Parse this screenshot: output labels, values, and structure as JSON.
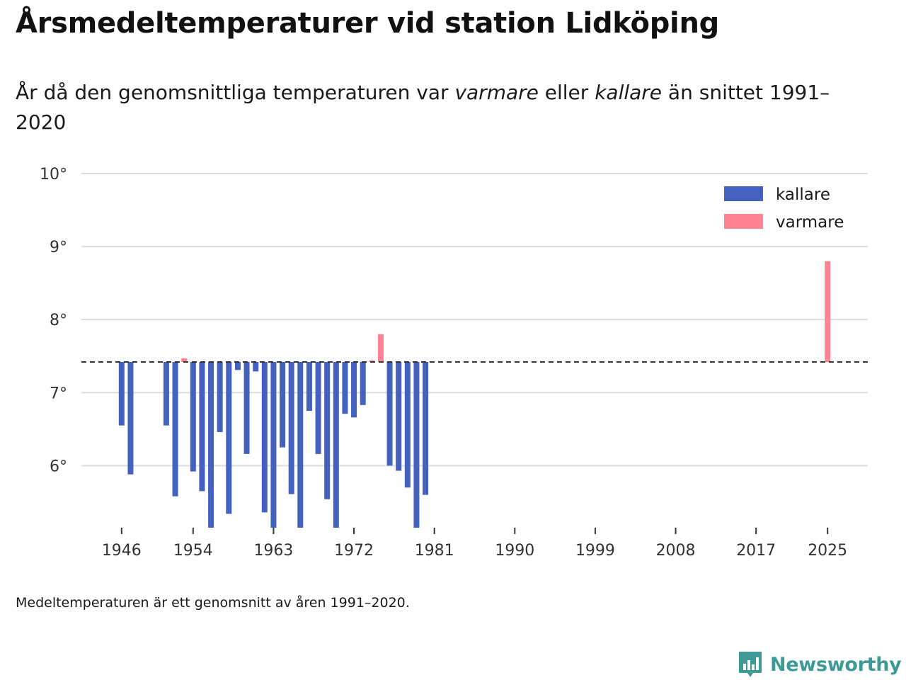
{
  "title": "Årsmedeltemperaturer vid station Lidköping",
  "subtitle": {
    "part1": "År då den genomsnittliga temperaturen var ",
    "warmer_word": "varmare",
    "part2": " eller ",
    "colder_word": "kallare",
    "part3": " än snittet 1991–2020"
  },
  "note": "Medeltemperaturen är ett genomsnitt av åren 1991–2020.",
  "brand": "Newsworthy",
  "colors": {
    "colder": "#4361bd",
    "warmer": "#ff8393",
    "grid": "#dddddd",
    "baseline": "#333333",
    "brand": "#3d9a94"
  },
  "chart_data": {
    "type": "bar",
    "baseline": 7.42,
    "ylim": [
      5.15,
      10
    ],
    "xlim": [
      1941.5,
      2029.5
    ],
    "y_ticks": [
      6,
      7,
      8,
      9,
      10
    ],
    "y_tick_labels": [
      "6°",
      "7°",
      "8°",
      "9°",
      "10°"
    ],
    "x_ticks": [
      1946,
      1954,
      1963,
      1972,
      1981,
      1990,
      1999,
      2008,
      2017,
      2025
    ],
    "x_tick_labels": [
      "1946",
      "1954",
      "1963",
      "1972",
      "1981",
      "1990",
      "1999",
      "2008",
      "2017",
      "2025"
    ],
    "legend": [
      {
        "label": "kallare",
        "key": "colder"
      },
      {
        "label": "varmare",
        "key": "warmer"
      }
    ],
    "legend_position": "top-right",
    "data": [
      {
        "year": 1946,
        "value": 6.55
      },
      {
        "year": 1947,
        "value": 5.88
      },
      {
        "year": 1951,
        "value": 6.55
      },
      {
        "year": 1952,
        "value": 5.58
      },
      {
        "year": 1953,
        "value": 7.47
      },
      {
        "year": 1954,
        "value": 5.92
      },
      {
        "year": 1955,
        "value": 5.65
      },
      {
        "year": 1956,
        "value": 5.15
      },
      {
        "year": 1957,
        "value": 6.46
      },
      {
        "year": 1958,
        "value": 5.34
      },
      {
        "year": 1959,
        "value": 7.31
      },
      {
        "year": 1960,
        "value": 6.16
      },
      {
        "year": 1961,
        "value": 7.29
      },
      {
        "year": 1962,
        "value": 5.36
      },
      {
        "year": 1963,
        "value": 5.15
      },
      {
        "year": 1964,
        "value": 6.25
      },
      {
        "year": 1965,
        "value": 5.61
      },
      {
        "year": 1966,
        "value": 5.15
      },
      {
        "year": 1967,
        "value": 6.75
      },
      {
        "year": 1968,
        "value": 6.16
      },
      {
        "year": 1969,
        "value": 5.54
      },
      {
        "year": 1970,
        "value": 5.15
      },
      {
        "year": 1971,
        "value": 6.71
      },
      {
        "year": 1972,
        "value": 6.66
      },
      {
        "year": 1973,
        "value": 6.83
      },
      {
        "year": 1974,
        "value": 7.44
      },
      {
        "year": 1975,
        "value": 7.8
      },
      {
        "year": 1976,
        "value": 6.0
      },
      {
        "year": 1977,
        "value": 5.93
      },
      {
        "year": 1978,
        "value": 5.7
      },
      {
        "year": 1979,
        "value": 5.15
      },
      {
        "year": 1980,
        "value": 5.6
      },
      {
        "year": 2025,
        "value": 8.8
      }
    ]
  }
}
